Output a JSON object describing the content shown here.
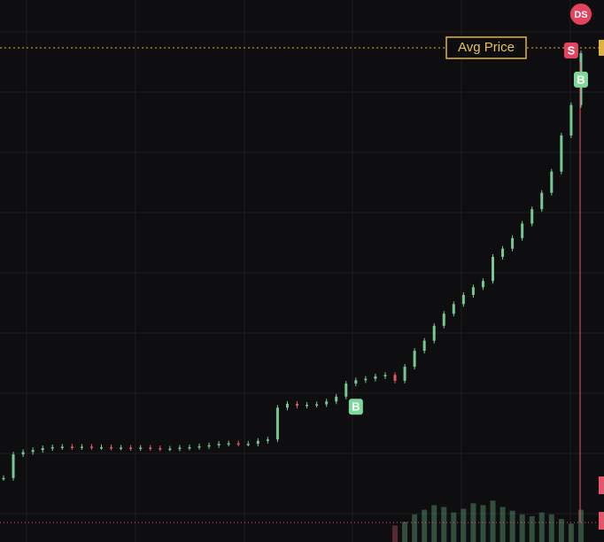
{
  "chart_data": {
    "type": "candle",
    "values": [
      7.4,
      12.3,
      12.8,
      13.2,
      13.6,
      13.8,
      13.9,
      13.8,
      13.9,
      13.8,
      13.8,
      13.7,
      13.7,
      13.6,
      13.7,
      13.6,
      13.5,
      13.5,
      13.7,
      13.8,
      14.0,
      14.2,
      14.5,
      14.6,
      14.5,
      14.5,
      15.1,
      15.4,
      22.0,
      22.8,
      22.4,
      22.6,
      22.7,
      23.3,
      24.3,
      27.0,
      27.7,
      28.0,
      28.5,
      28.8,
      27.6,
      30.5,
      33.8,
      35.9,
      39.0,
      41.5,
      43.5,
      45.4,
      47.0,
      48.3,
      53.3,
      55.0,
      57.2,
      60.2,
      63.2,
      66.6,
      71.0,
      78.5,
      84.8,
      95.6
    ],
    "ylim": [
      0,
      100
    ],
    "volume": [
      null,
      null,
      null,
      null,
      null,
      null,
      null,
      null,
      null,
      null,
      null,
      null,
      null,
      null,
      null,
      null,
      null,
      null,
      null,
      null,
      null,
      null,
      null,
      null,
      null,
      null,
      null,
      null,
      null,
      null,
      null,
      null,
      null,
      null,
      null,
      null,
      null,
      null,
      null,
      null,
      18,
      22,
      30,
      35,
      40,
      38,
      32,
      36,
      42,
      40,
      45,
      38,
      34,
      30,
      28,
      32,
      30,
      25,
      20,
      35
    ],
    "vlim": [
      0,
      50
    ],
    "up_color": "#76c893",
    "down_color": "#e5566d",
    "avg_price": 96.7,
    "avg_price_label": "Avg Price",
    "markers": [
      {
        "label": "B",
        "index": 36,
        "side": "buy"
      },
      {
        "label": "S",
        "index": 58,
        "side": "sell"
      },
      {
        "label": "B",
        "index": 59,
        "side": "buy"
      },
      {
        "label": "DS",
        "index": 59,
        "side": "event"
      }
    ],
    "grid": true
  }
}
